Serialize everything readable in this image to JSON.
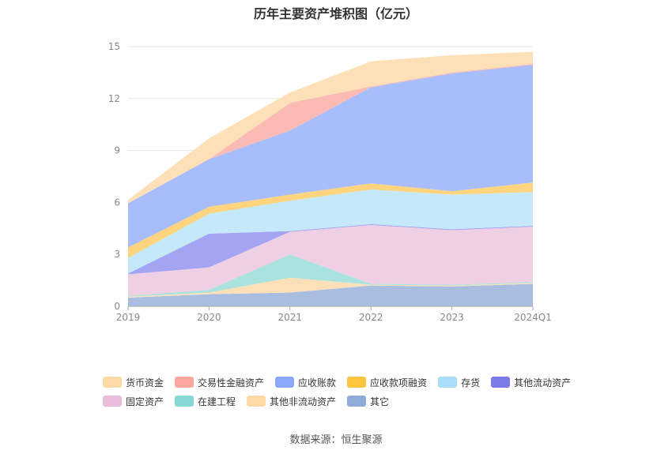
{
  "chart_data": {
    "type": "area",
    "stacked": true,
    "title": "历年主要资产堆积图（亿元）",
    "categories": [
      "2019",
      "2020",
      "2021",
      "2022",
      "2023",
      "2024Q1"
    ],
    "ylim": [
      0,
      15
    ],
    "yticks": [
      "0",
      "3",
      "6",
      "9",
      "12",
      "15"
    ],
    "grid": true,
    "legend_position": "bottom",
    "series": [
      {
        "name": "其它",
        "color": "#a8bde0",
        "values": [
          0.5,
          0.7,
          0.8,
          1.2,
          1.15,
          1.3
        ]
      },
      {
        "name": "其他非流动资产",
        "color": "#fde0b8",
        "values": [
          0.05,
          0.1,
          0.85,
          0.05,
          0.05,
          0.05
        ]
      },
      {
        "name": "在建工程",
        "color": "#a9e2de",
        "values": [
          0.05,
          0.15,
          1.35,
          0.05,
          0.05,
          0.05
        ]
      },
      {
        "name": "固定资产",
        "color": "#efcfe3",
        "values": [
          1.25,
          1.3,
          1.3,
          3.4,
          3.15,
          3.2
        ]
      },
      {
        "name": "其他流动资产",
        "color": "#a4a4f2",
        "values": [
          0.05,
          1.95,
          0.05,
          0.05,
          0.05,
          0.05
        ]
      },
      {
        "name": "存货",
        "color": "#c5e8fb",
        "values": [
          0.9,
          1.15,
          1.75,
          2.0,
          2.0,
          1.95
        ]
      },
      {
        "name": "应收款项融资",
        "color": "#fed47e",
        "values": [
          0.6,
          0.4,
          0.35,
          0.35,
          0.2,
          0.55
        ]
      },
      {
        "name": "应收账款",
        "color": "#a7bdfc",
        "values": [
          2.55,
          2.75,
          3.7,
          5.55,
          6.8,
          6.8
        ]
      },
      {
        "name": "交易性金融资产",
        "color": "#fcbab4",
        "values": [
          0.0,
          0.0,
          1.6,
          0.05,
          0.05,
          0.05
        ]
      },
      {
        "name": "货币资金",
        "color": "#fde0b8",
        "values": [
          0.2,
          1.2,
          0.6,
          1.45,
          1.0,
          0.7
        ]
      }
    ]
  },
  "legend": {
    "rows": [
      [
        {
          "label": "货币资金",
          "color": "#fdd9a6"
        },
        {
          "label": "交易性金融资产",
          "color": "#fba79f"
        },
        {
          "label": "应收账款",
          "color": "#8ba9fb"
        },
        {
          "label": "应收款项融资",
          "color": "#fdc53e"
        },
        {
          "label": "存货",
          "color": "#a8def9"
        },
        {
          "label": "其他流动资产",
          "color": "#7b7ae9"
        }
      ],
      [
        {
          "label": "固定资产",
          "color": "#e8bedb"
        },
        {
          "label": "在建工程",
          "color": "#86d8d4"
        },
        {
          "label": "其他非流动资产",
          "color": "#fdd9a6"
        },
        {
          "label": "其它",
          "color": "#8facd9"
        }
      ]
    ]
  },
  "source": "数据来源：恒生聚源"
}
